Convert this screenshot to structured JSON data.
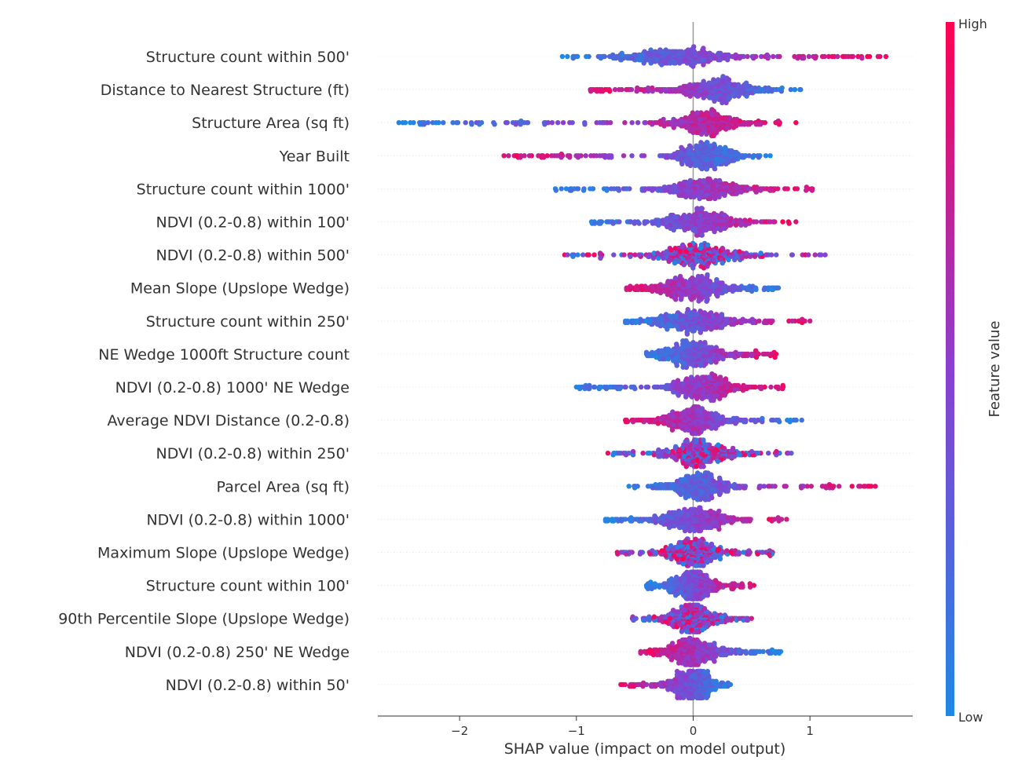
{
  "chart_data": {
    "type": "scatter",
    "subtype": "shap-beeswarm",
    "xlabel": "SHAP value (impact on model output)",
    "xlim": [
      -2.7,
      1.88
    ],
    "xticks": [
      -2,
      -1,
      0,
      1
    ],
    "xtick_labels": [
      "−2",
      "−1",
      "0",
      "1"
    ],
    "colorbar": {
      "title": "Feature value",
      "high_label": "High",
      "low_label": "Low",
      "low_color": "#1e88e5",
      "high_color": "#ff0051"
    },
    "features": [
      {
        "name": "Structure count within 500'",
        "min": -1.12,
        "max": 1.65,
        "center": -0.15,
        "spread": 0.42,
        "trend": 1
      },
      {
        "name": "Distance to Nearest Structure (ft)",
        "min": -0.88,
        "max": 0.92,
        "center": 0.2,
        "spread": 0.32,
        "trend": -1
      },
      {
        "name": "Structure Area (sq ft)",
        "min": -2.52,
        "max": 0.88,
        "center": 0.12,
        "spread": 0.28,
        "trend": 1
      },
      {
        "name": "Year Built",
        "min": -1.62,
        "max": 0.66,
        "center": 0.12,
        "spread": 0.24,
        "trend": -1
      },
      {
        "name": "Structure count within 1000'",
        "min": -1.18,
        "max": 1.02,
        "center": 0.1,
        "spread": 0.32,
        "trend": 1
      },
      {
        "name": "NDVI (0.2-0.8) within 100'",
        "min": -0.87,
        "max": 0.88,
        "center": 0.05,
        "spread": 0.3,
        "trend": 1
      },
      {
        "name": "NDVI (0.2-0.8) within 500'",
        "min": -1.1,
        "max": 1.13,
        "center": 0.05,
        "spread": 0.3,
        "trend": 0
      },
      {
        "name": "Mean Slope (Upslope Wedge)",
        "min": -0.57,
        "max": 0.73,
        "center": 0.0,
        "spread": 0.3,
        "trend": -1
      },
      {
        "name": "Structure count within 250'",
        "min": -0.58,
        "max": 1.0,
        "center": 0.0,
        "spread": 0.3,
        "trend": 1
      },
      {
        "name": "NE Wedge 1000ft Structure count",
        "min": -0.4,
        "max": 0.71,
        "center": 0.0,
        "spread": 0.25,
        "trend": 1
      },
      {
        "name": "NDVI (0.2-0.8) 1000' NE Wedge",
        "min": -1.0,
        "max": 0.77,
        "center": 0.1,
        "spread": 0.24,
        "trend": 1
      },
      {
        "name": "Average NDVI Distance (0.2-0.8)",
        "min": -0.58,
        "max": 0.93,
        "center": 0.0,
        "spread": 0.26,
        "trend": -1
      },
      {
        "name": "NDVI (0.2-0.8) within 250'",
        "min": -0.73,
        "max": 0.84,
        "center": 0.05,
        "spread": 0.24,
        "trend": 0
      },
      {
        "name": "Parcel Area (sq ft)",
        "min": -0.55,
        "max": 1.56,
        "center": 0.05,
        "spread": 0.22,
        "trend": 1
      },
      {
        "name": "NDVI (0.2-0.8) within 1000'",
        "min": -0.75,
        "max": 0.8,
        "center": 0.0,
        "spread": 0.27,
        "trend": 1
      },
      {
        "name": "Maximum Slope (Upslope Wedge)",
        "min": -0.65,
        "max": 0.68,
        "center": 0.0,
        "spread": 0.22,
        "trend": 0
      },
      {
        "name": "Structure count within 100'",
        "min": -0.4,
        "max": 0.52,
        "center": 0.0,
        "spread": 0.16,
        "trend": 1
      },
      {
        "name": "90th Percentile Slope (Upslope Wedge)",
        "min": -0.52,
        "max": 0.5,
        "center": 0.0,
        "spread": 0.2,
        "trend": 0
      },
      {
        "name": "NDVI (0.2-0.8) 250' NE Wedge",
        "min": -0.45,
        "max": 0.75,
        "center": 0.0,
        "spread": 0.22,
        "trend": -1
      },
      {
        "name": "NDVI (0.2-0.8) within 50'",
        "min": -0.62,
        "max": 0.32,
        "center": 0.0,
        "spread": 0.17,
        "trend": -1
      }
    ]
  }
}
